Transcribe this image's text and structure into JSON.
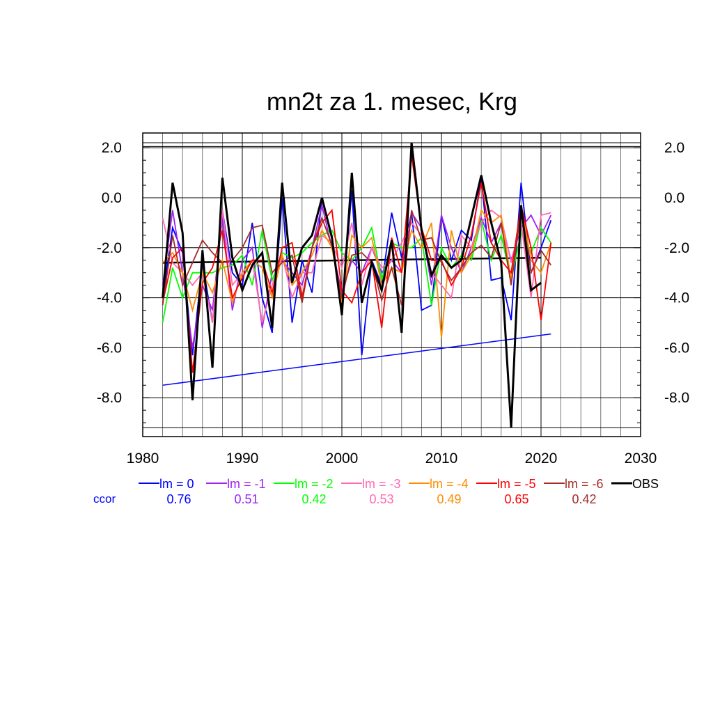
{
  "chart_data": {
    "type": "line",
    "title": "mn2t za 1. mesec, Krg",
    "xlabel": "",
    "ylabel": "",
    "xlim": [
      1980,
      2030
    ],
    "ylim": [
      -9.2,
      2.2
    ],
    "x_ticks": [
      "1980",
      "1990",
      "2000",
      "2010",
      "2020",
      "2030"
    ],
    "y_ticks": [
      "2.0",
      "0.0",
      "-2.0",
      "-4.0",
      "-6.0",
      "-8.0"
    ],
    "grid": true,
    "legend_position": "bottom",
    "ccor_label": "ccor",
    "x": [
      1982,
      1983,
      1984,
      1985,
      1986,
      1987,
      1988,
      1989,
      1990,
      1991,
      1992,
      1993,
      1994,
      1995,
      1996,
      1997,
      1998,
      1999,
      2000,
      2001,
      2002,
      2003,
      2004,
      2005,
      2006,
      2007,
      2008,
      2009,
      2010,
      2011,
      2012,
      2013,
      2014,
      2015,
      2016,
      2017,
      2018,
      2019,
      2020,
      2021
    ],
    "series": [
      {
        "name": "lm = 0",
        "color": "#0000ff",
        "ccor": "0.76",
        "values": [
          -4.0,
          -1.2,
          -2.2,
          -6.3,
          -2.6,
          -5.0,
          -0.5,
          -3.0,
          -3.5,
          -1.0,
          -4.0,
          -5.4,
          0.0,
          -5.0,
          -2.5,
          -3.8,
          0.0,
          -1.5,
          -4.5,
          0.3,
          -6.3,
          -2.5,
          -3.5,
          -0.6,
          -2.4,
          -0.6,
          -4.5,
          -4.3,
          -0.7,
          -2.5,
          -1.3,
          -1.7,
          0.8,
          -3.3,
          -3.2,
          -4.9,
          0.6,
          -3.0,
          -2.0,
          -0.9
        ]
      },
      {
        "name": "lm = -1",
        "color": "#a020f0",
        "ccor": "0.51",
        "values": [
          -3.5,
          -0.5,
          -3.0,
          -6.0,
          -3.5,
          -4.5,
          -0.8,
          -4.5,
          -2.5,
          -2.0,
          -5.2,
          -3.0,
          -2.5,
          -3.0,
          -3.5,
          -2.0,
          -0.3,
          -2.0,
          -3.8,
          -2.5,
          -3.0,
          -2.0,
          -3.0,
          -2.5,
          -3.0,
          -0.6,
          -1.2,
          -3.5,
          -0.7,
          -2.0,
          -3.0,
          -2.0,
          -0.8,
          -1.8,
          -1.0,
          -2.5,
          -1.2,
          -0.7,
          -1.5,
          -0.7
        ]
      },
      {
        "name": "lm = -2",
        "color": "#00ff00",
        "ccor": "0.42",
        "values": [
          -5.0,
          -2.8,
          -4.0,
          -3.0,
          -3.0,
          -3.0,
          -2.8,
          -2.7,
          -2.3,
          -3.5,
          -1.3,
          -3.3,
          -2.2,
          -2.4,
          -2.2,
          -1.8,
          -1.5,
          -1.3,
          -2.2,
          -2.5,
          -2.0,
          -1.2,
          -3.3,
          -1.8,
          -2.0,
          -2.0,
          -1.6,
          -4.3,
          -2.0,
          -2.8,
          -2.3,
          -2.5,
          -0.9,
          -2.5,
          -1.5,
          -3.3,
          -1.4,
          -2.2,
          -1.2,
          -1.8
        ]
      },
      {
        "name": "lm = -3",
        "color": "#ff69b4",
        "ccor": "0.53",
        "values": [
          -0.8,
          -2.6,
          -3.0,
          -3.5,
          -3.0,
          -5.0,
          -0.5,
          -3.5,
          -3.0,
          -2.5,
          -5.0,
          -3.5,
          -2.3,
          -4.0,
          -3.0,
          -3.0,
          -1.5,
          -1.8,
          -2.8,
          -1.0,
          -3.5,
          -2.0,
          -2.8,
          -2.5,
          -1.8,
          -1.0,
          -1.5,
          -3.0,
          -3.5,
          -4.0,
          -1.5,
          -2.0,
          -1.0,
          -0.5,
          -0.8,
          -2.6,
          -1.0,
          -4.0,
          -0.7,
          -0.6
        ]
      },
      {
        "name": "lm = -4",
        "color": "#ff8c00",
        "ccor": "0.49",
        "values": [
          -2.6,
          -2.2,
          -3.0,
          -4.5,
          -3.0,
          -3.8,
          -2.5,
          -4.2,
          -3.0,
          -2.5,
          -2.8,
          -4.0,
          -2.3,
          -3.5,
          -3.0,
          -2.3,
          -1.3,
          -2.0,
          -4.2,
          -1.5,
          -2.0,
          -1.6,
          -3.5,
          -2.8,
          -3.0,
          -1.3,
          -2.0,
          -1.0,
          -5.6,
          -1.3,
          -3.0,
          -2.3,
          -0.5,
          -1.0,
          -0.7,
          -3.3,
          -0.3,
          -2.5,
          -3.0,
          -1.8
        ]
      },
      {
        "name": "lm = -5",
        "color": "#ff0000",
        "ccor": "0.65",
        "values": [
          -4.2,
          -2.4,
          -2.0,
          -7.0,
          -3.4,
          -2.8,
          -1.3,
          -4.0,
          -3.2,
          -2.5,
          -2.5,
          -3.8,
          -2.0,
          -1.8,
          -4.0,
          -2.0,
          -1.0,
          -0.5,
          -3.7,
          -4.2,
          -3.0,
          -2.5,
          -5.2,
          -1.6,
          -3.0,
          1.7,
          -1.2,
          -2.5,
          -2.5,
          -3.5,
          -2.8,
          -1.5,
          0.6,
          -1.8,
          -2.5,
          -3.0,
          -0.3,
          -2.0,
          -4.9,
          -1.8
        ]
      },
      {
        "name": "lm = -6",
        "color": "#a52a2a",
        "ccor": "0.42",
        "values": [
          -4.3,
          -1.5,
          -3.5,
          -2.6,
          -1.7,
          -2.2,
          -2.6,
          -2.5,
          -2.0,
          -1.2,
          -1.1,
          -3.0,
          -2.6,
          -2.3,
          -4.2,
          -2.0,
          -0.8,
          -1.9,
          -4.0,
          -2.3,
          -2.2,
          -2.6,
          -4.1,
          -2.8,
          -4.3,
          -0.5,
          -1.7,
          -1.6,
          -2.6,
          -3.3,
          -2.8,
          -2.2,
          -1.9,
          -2.4,
          -1.0,
          -3.5,
          -0.4,
          -3.0,
          -2.1,
          -2.7
        ]
      },
      {
        "name": "OBS",
        "color": "#000000",
        "ccor": "",
        "values": [
          -4.0,
          0.6,
          -1.4,
          -8.1,
          -2.1,
          -6.8,
          0.8,
          -2.4,
          -3.7,
          -2.7,
          -2.2,
          -5.2,
          0.6,
          -3.4,
          -2.0,
          -1.5,
          0.0,
          -1.6,
          -4.7,
          1.0,
          -4.2,
          -2.6,
          -3.7,
          -1.7,
          -5.4,
          2.2,
          -1.3,
          -3.1,
          -2.3,
          -2.8,
          -2.5,
          -0.8,
          0.9,
          -1.0,
          -2.6,
          -9.2,
          -0.3,
          -3.7,
          -3.4,
          null
        ]
      }
    ],
    "trend_lines": [
      {
        "name": "OBS trend",
        "color": "#000000",
        "x": [
          1982,
          2020
        ],
        "y": [
          -2.6,
          -2.4
        ]
      },
      {
        "name": "lm = 0 trend",
        "color": "#0000ff",
        "x": [
          1982,
          2021
        ],
        "y": [
          -7.5,
          -5.45
        ]
      }
    ]
  }
}
